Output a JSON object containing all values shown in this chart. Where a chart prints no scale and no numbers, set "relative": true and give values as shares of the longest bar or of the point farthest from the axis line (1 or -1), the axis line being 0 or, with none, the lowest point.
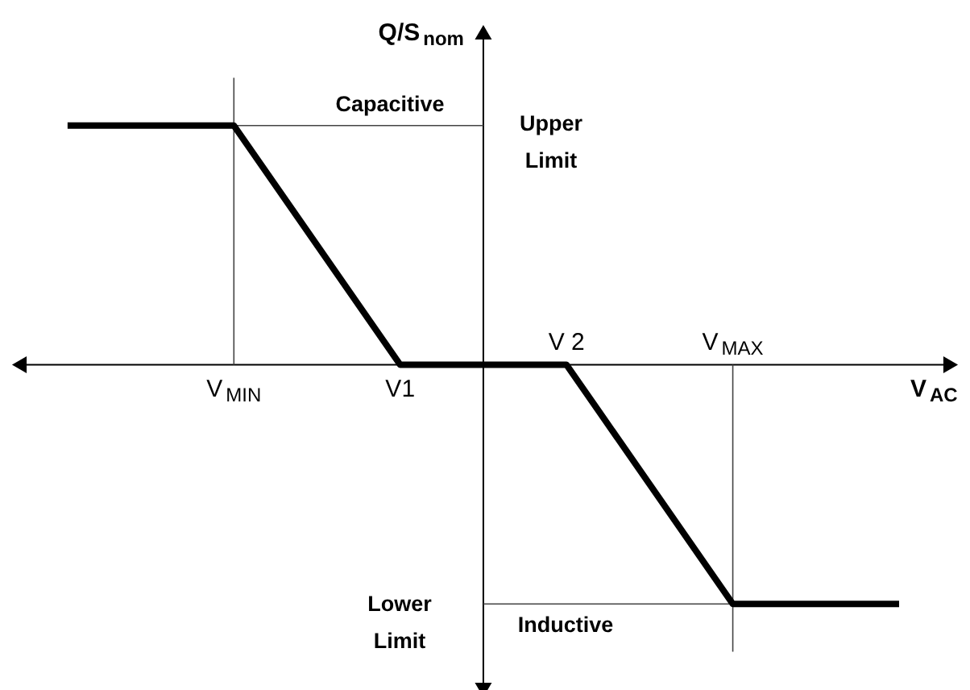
{
  "chart_data": {
    "type": "line",
    "xlabel": "V$_{AC}$",
    "ylabel": "Q/S$_{nom}$",
    "relative": true,
    "categories": [
      null,
      "V$_{MIN}$",
      "V1",
      "V 2",
      "V$_{MAX}$",
      null
    ],
    "series": [
      {
        "color": "#000000",
        "values": [
          1,
          1,
          0,
          0,
          -1,
          -1
        ]
      }
    ],
    "ref_lines": [
      {
        "axis": "x",
        "value": "V$_{MIN}$"
      },
      {
        "axis": "x",
        "value": "V$_{MAX}$"
      },
      {
        "axis": "y",
        "value": 1
      },
      {
        "axis": "y",
        "value": -1
      }
    ],
    "annotations": [
      "Capacitive",
      "Upper Limit",
      "Lower Limit",
      "Inductive"
    ],
    "line_style": "solid",
    "marker": "none"
  }
}
